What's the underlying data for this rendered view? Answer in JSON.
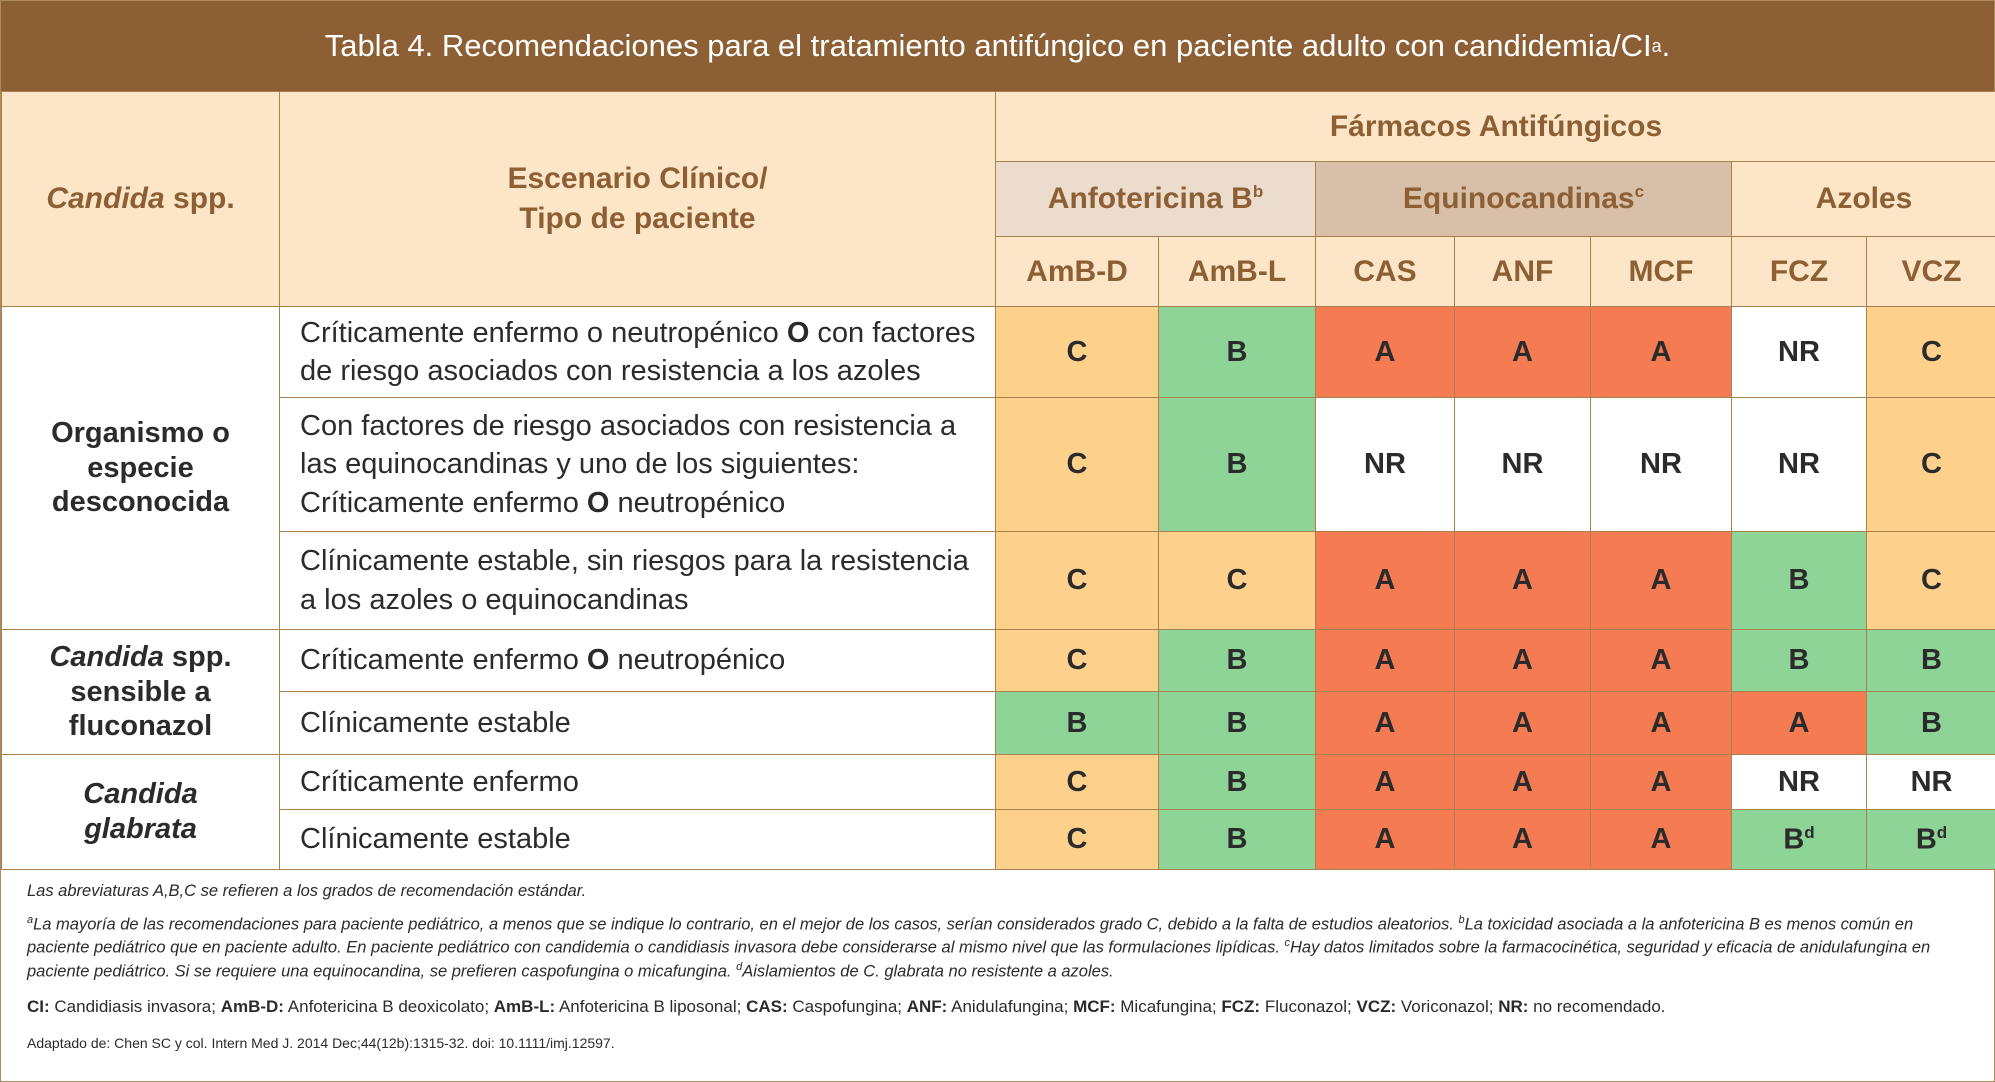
{
  "title": {
    "text": "Tabla 4. Recomendaciones para el tratamiento antifúngico en paciente adulto con candidemia/CI",
    "sup": "a",
    "end": "."
  },
  "header": {
    "col_species_italic": "Candida",
    "col_species_rest": " spp.",
    "col_scenario_line1": "Escenario Clínico/",
    "col_scenario_line2": "Tipo de paciente",
    "drugs_title": "Fármacos Antifúngicos",
    "groups": [
      {
        "label": "Anfotericina B",
        "sup": "b"
      },
      {
        "label": "Equinocandinas",
        "sup": "c"
      },
      {
        "label": "Azoles",
        "sup": ""
      }
    ],
    "drugs": [
      "AmB-D",
      "AmB-L",
      "CAS",
      "ANF",
      "MCF",
      "FCZ",
      "VCZ"
    ]
  },
  "groups": [
    {
      "organism_italic": "",
      "organism_line1": "Organismo o",
      "organism_line2": "especie",
      "organism_line3": "desconocida",
      "rows": [
        {
          "scenario": [
            {
              "t": "Críticamente enfermo o neutropénico "
            },
            {
              "t": "O",
              "b": true
            },
            {
              "t": " con factores de riesgo asociados con resistencia a los azoles"
            }
          ],
          "grades": [
            [
              "C",
              ""
            ],
            [
              "B",
              ""
            ],
            [
              "A",
              ""
            ],
            [
              "A",
              ""
            ],
            [
              "A",
              ""
            ],
            [
              "NR",
              ""
            ],
            [
              "C",
              ""
            ]
          ]
        },
        {
          "scenario": [
            {
              "t": "Con factores de riesgo asociados con resistencia a las equinocandinas y uno de los siguientes: Críticamente enfermo "
            },
            {
              "t": "O",
              "b": true
            },
            {
              "t": " neutropénico"
            }
          ],
          "grades": [
            [
              "C",
              ""
            ],
            [
              "B",
              ""
            ],
            [
              "NR",
              ""
            ],
            [
              "NR",
              ""
            ],
            [
              "NR",
              ""
            ],
            [
              "NR",
              ""
            ],
            [
              "C",
              ""
            ]
          ]
        },
        {
          "scenario": [
            {
              "t": "Clínicamente estable, sin riesgos para la resistencia a los azoles o equinocandinas"
            }
          ],
          "grades": [
            [
              "C",
              ""
            ],
            [
              "C",
              ""
            ],
            [
              "A",
              ""
            ],
            [
              "A",
              ""
            ],
            [
              "A",
              ""
            ],
            [
              "B",
              ""
            ],
            [
              "C",
              ""
            ]
          ]
        }
      ]
    },
    {
      "organism_italic": "Candida",
      "organism_line1": " spp.",
      "organism_line2": "sensible a",
      "organism_line3": "fluconazol",
      "rows": [
        {
          "scenario": [
            {
              "t": "Críticamente enfermo "
            },
            {
              "t": "O",
              "b": true
            },
            {
              "t": " neutropénico"
            }
          ],
          "grades": [
            [
              "C",
              ""
            ],
            [
              "B",
              ""
            ],
            [
              "A",
              ""
            ],
            [
              "A",
              ""
            ],
            [
              "A",
              ""
            ],
            [
              "B",
              ""
            ],
            [
              "B",
              ""
            ]
          ]
        },
        {
          "scenario": [
            {
              "t": "Clínicamente estable"
            }
          ],
          "grades": [
            [
              "B",
              ""
            ],
            [
              "B",
              ""
            ],
            [
              "A",
              ""
            ],
            [
              "A",
              ""
            ],
            [
              "A",
              ""
            ],
            [
              "A",
              ""
            ],
            [
              "B",
              ""
            ]
          ]
        }
      ]
    },
    {
      "organism_italic": "Candida",
      "organism_line1": "",
      "organism_line2": "glabrata",
      "organism_line3": "",
      "rows": [
        {
          "scenario": [
            {
              "t": "Críticamente enfermo"
            }
          ],
          "grades": [
            [
              "C",
              ""
            ],
            [
              "B",
              ""
            ],
            [
              "A",
              ""
            ],
            [
              "A",
              ""
            ],
            [
              "A",
              ""
            ],
            [
              "NR",
              ""
            ],
            [
              "NR",
              ""
            ]
          ]
        },
        {
          "scenario": [
            {
              "t": "Clínicamente estable"
            }
          ],
          "grades": [
            [
              "C",
              ""
            ],
            [
              "B",
              ""
            ],
            [
              "A",
              ""
            ],
            [
              "A",
              ""
            ],
            [
              "A",
              ""
            ],
            [
              "B",
              "d"
            ],
            [
              "B",
              "d"
            ]
          ]
        }
      ]
    }
  ],
  "grade_colors": {
    "A": "#f47b52",
    "B": "#8dd496",
    "C": "#fdd08b",
    "NR": "#ffffff"
  },
  "footer": {
    "note1": "Las abreviaturas A,B,C  se refieren a los grados de recomendación estándar.",
    "note2_parts": [
      {
        "sup": "a",
        "t": "La mayoría de las recomendaciones para paciente pediátrico, a menos que se indique lo contrario, en el mejor de los casos, serían considerados grado C, debido a la falta de estudios aleatorios. "
      },
      {
        "sup": "b",
        "t": "La toxicidad asociada a la anfotericina B es menos común en paciente pediátrico que en paciente adulto. En paciente pediátrico con candidemia o candidiasis invasora debe considerarse al mismo nivel que las formulaciones lipídicas. "
      },
      {
        "sup": "c",
        "t": "Hay datos limitados sobre la farmacocinética, seguridad y eficacia de anidulafungina en paciente pediátrico. Si se requiere una equinocandina, se prefieren caspofungina o micafungina. "
      },
      {
        "sup": "d",
        "t": "Aislamientos de C. glabrata no resistente a azoles."
      }
    ],
    "abbreviations": [
      {
        "k": "CI:",
        "v": " Candidiasis invasora; "
      },
      {
        "k": "AmB-D:",
        "v": " Anfotericina B deoxicolato; "
      },
      {
        "k": "AmB-L:",
        "v": " Anfotericina B liposonal; "
      },
      {
        "k": "CAS:",
        "v": " Caspofungina; "
      },
      {
        "k": "ANF:",
        "v": " Anidulafungina; "
      },
      {
        "k": "MCF:",
        "v": " Micafungina; "
      },
      {
        "k": "FCZ:",
        "v": " Fluconazol; "
      },
      {
        "k": "VCZ:",
        "v": " Voriconazol; "
      },
      {
        "k": "NR:",
        "v": " no recomendado."
      }
    ],
    "source": "Adaptado de: Chen SC y col. Intern Med J. 2014 Dec;44(12b):1315-32. doi: 10.1111/imj.12597."
  }
}
